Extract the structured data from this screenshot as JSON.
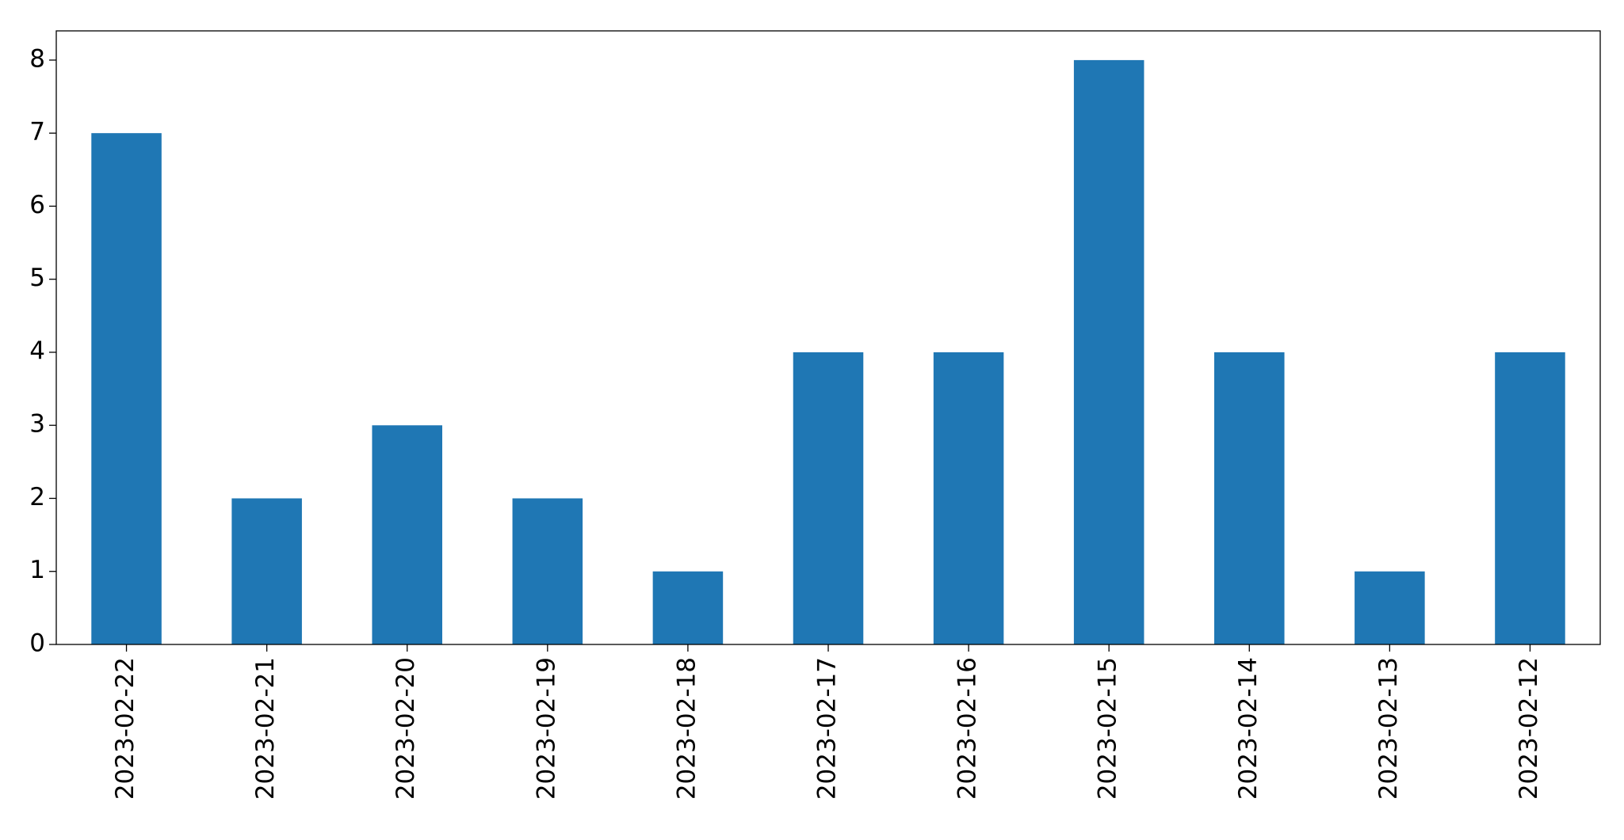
{
  "chart_data": {
    "type": "bar",
    "categories": [
      "2023-02-22",
      "2023-02-21",
      "2023-02-20",
      "2023-02-19",
      "2023-02-18",
      "2023-02-17",
      "2023-02-16",
      "2023-02-15",
      "2023-02-14",
      "2023-02-13",
      "2023-02-12"
    ],
    "values": [
      7,
      2,
      3,
      2,
      1,
      4,
      4,
      8,
      4,
      1,
      4
    ],
    "color": "#1f77b4",
    "ylim": [
      0,
      8.4
    ],
    "yticks": [
      0,
      1,
      2,
      3,
      4,
      5,
      6,
      7,
      8
    ],
    "grid": false
  }
}
